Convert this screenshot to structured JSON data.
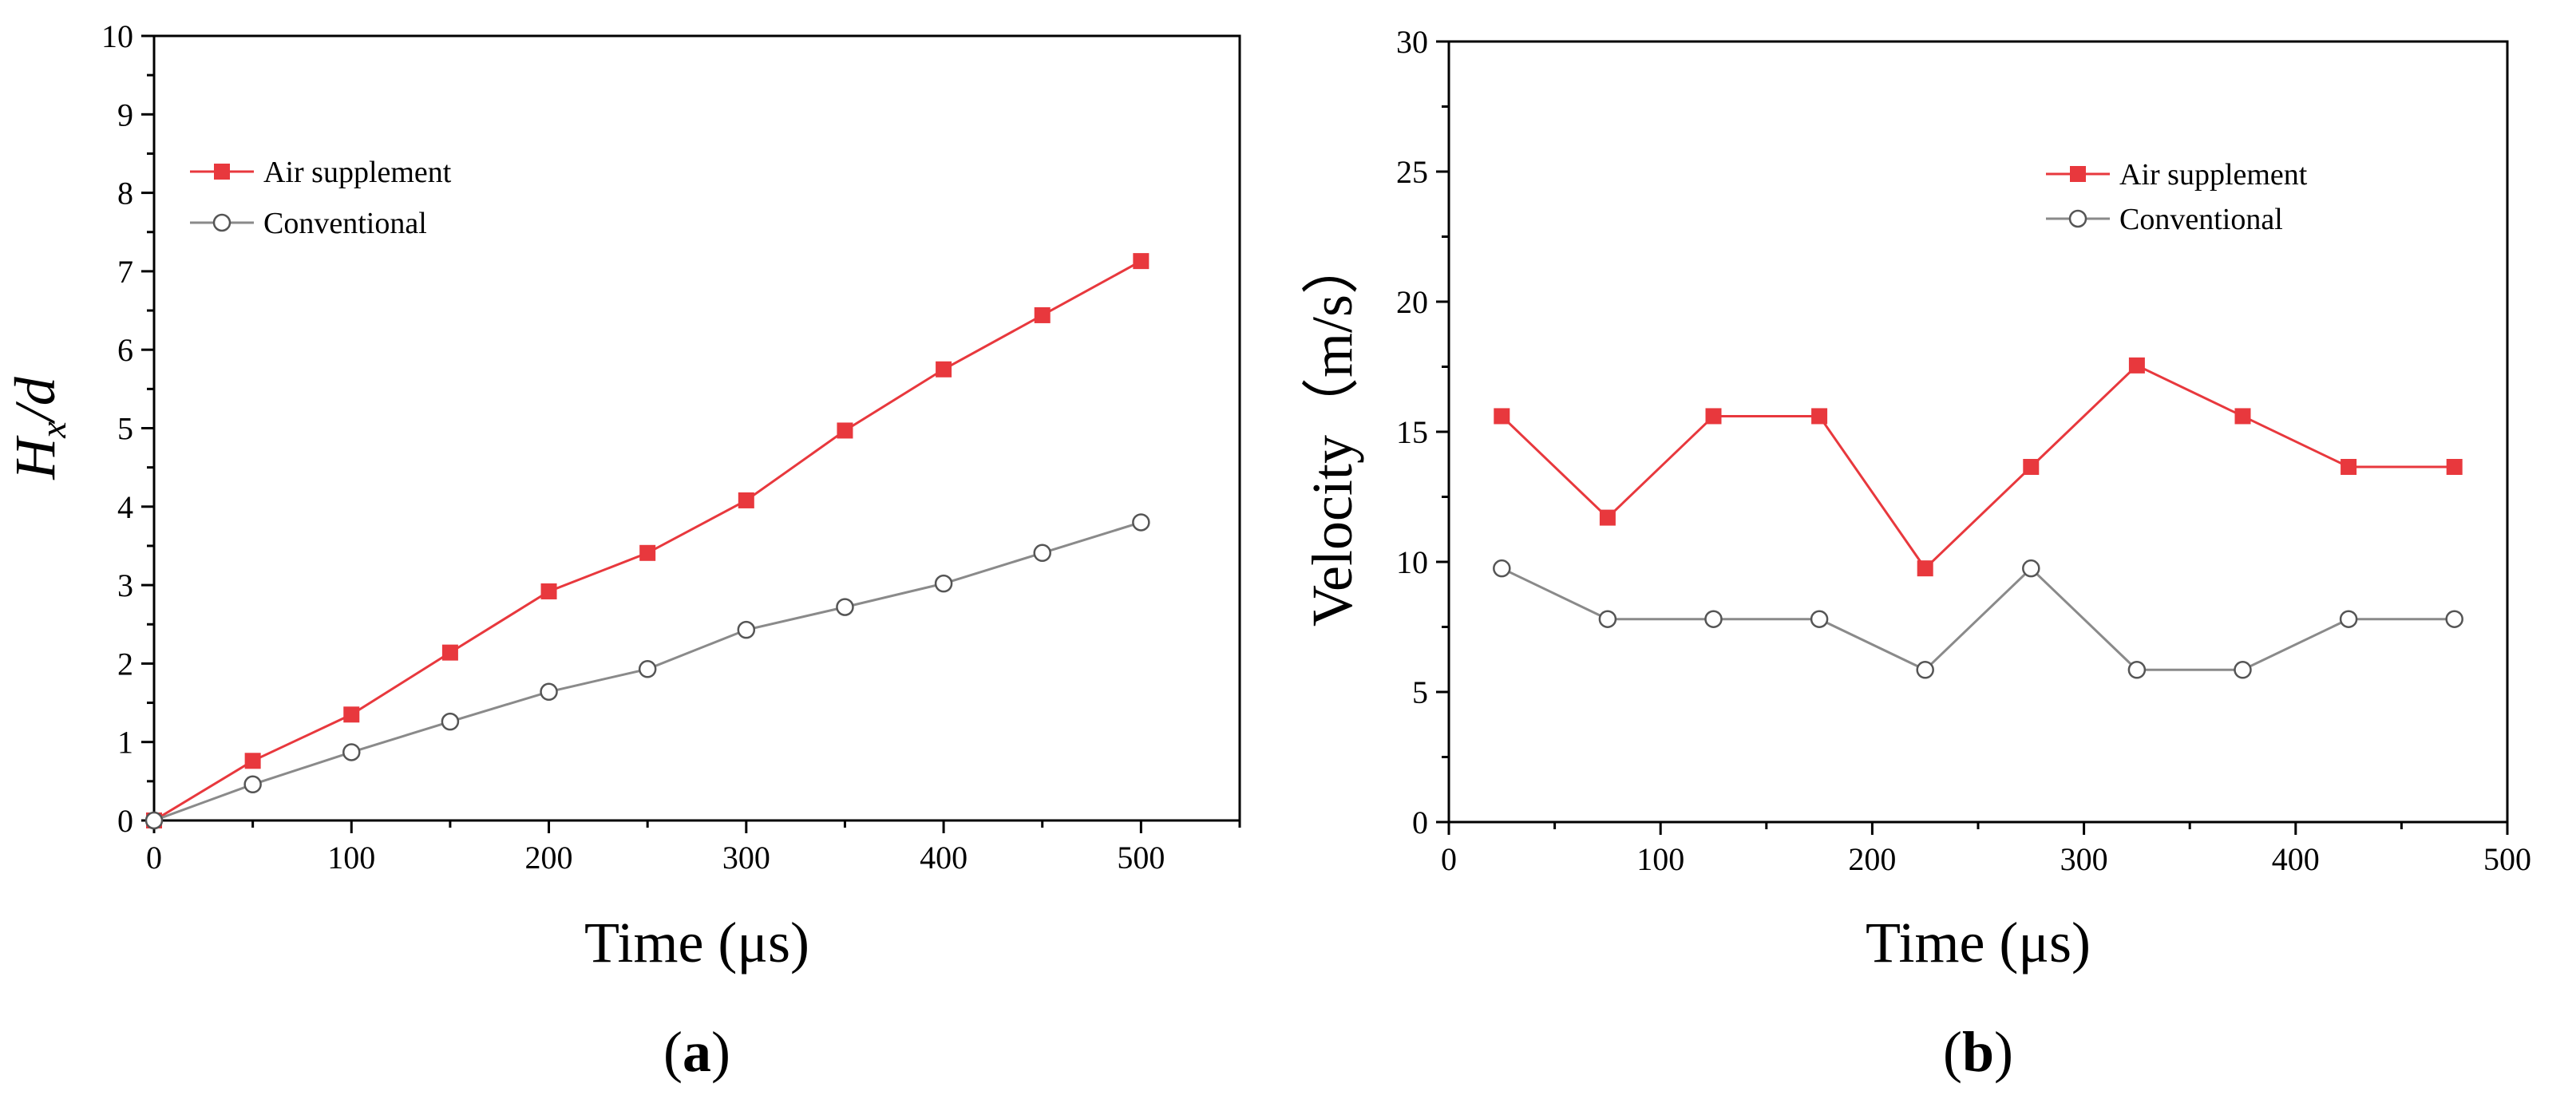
{
  "chart_data": [
    {
      "type": "line",
      "panel_label": "(a)",
      "xlabel": "Time (μs)",
      "ylabel_main": "H",
      "ylabel_sub": "x",
      "ylabel_rest": "/d",
      "xlim": [
        0,
        550
      ],
      "ylim": [
        0,
        10
      ],
      "xticks": [
        0,
        100,
        200,
        300,
        400,
        500
      ],
      "yticks": [
        0,
        1,
        2,
        3,
        4,
        5,
        6,
        7,
        8,
        9,
        10
      ],
      "legend_position": "top-left",
      "x": [
        0,
        50,
        100,
        150,
        200,
        250,
        300,
        350,
        400,
        450,
        500
      ],
      "series": [
        {
          "name": "Air supplement",
          "color": "#e8383d",
          "marker": "filled-square",
          "values": [
            0,
            0.76,
            1.35,
            2.14,
            2.92,
            3.41,
            4.08,
            4.97,
            5.75,
            6.44,
            7.13
          ]
        },
        {
          "name": "Conventional",
          "color": "#8a8a8a",
          "marker": "open-circle",
          "values": [
            0,
            0.46,
            0.87,
            1.26,
            1.64,
            1.93,
            2.43,
            2.72,
            3.02,
            3.41,
            3.8
          ]
        }
      ]
    },
    {
      "type": "line",
      "panel_label": "(b)",
      "xlabel": "Time (μs)",
      "ylabel": "Velocity（m/s）",
      "xlim": [
        0,
        500
      ],
      "ylim": [
        0,
        30
      ],
      "xticks": [
        0,
        100,
        200,
        300,
        400,
        500
      ],
      "yticks": [
        0,
        5,
        10,
        15,
        20,
        25,
        30
      ],
      "legend_position": "top-right",
      "x": [
        25,
        75,
        125,
        175,
        225,
        275,
        325,
        375,
        425,
        475
      ],
      "series": [
        {
          "name": "Air supplement",
          "color": "#e8383d",
          "marker": "filled-square",
          "values": [
            15.6,
            11.7,
            15.6,
            15.6,
            9.75,
            13.65,
            17.55,
            15.6,
            13.65,
            13.65
          ]
        },
        {
          "name": "Conventional",
          "color": "#8a8a8a",
          "marker": "open-circle",
          "values": [
            9.75,
            7.8,
            7.8,
            7.8,
            5.85,
            9.75,
            5.85,
            5.85,
            7.8,
            7.8
          ]
        }
      ]
    }
  ]
}
